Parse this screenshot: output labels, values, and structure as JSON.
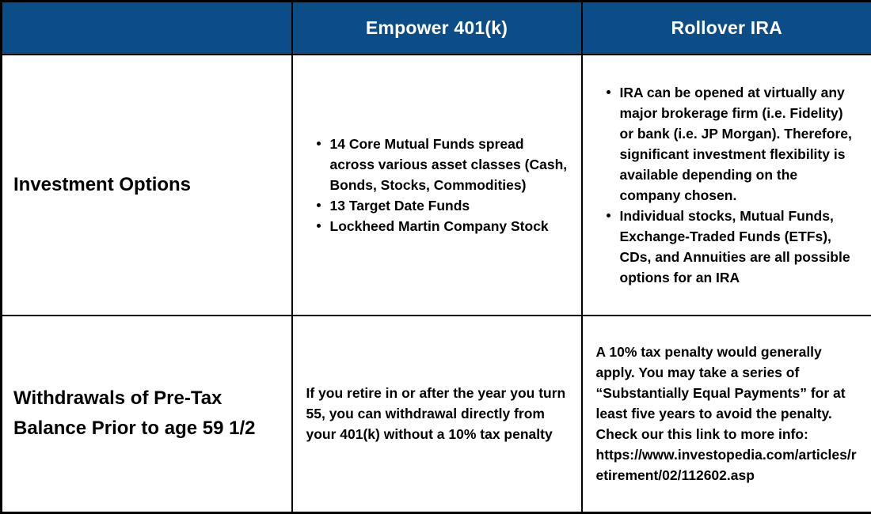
{
  "theme": {
    "header_bg": "#0d4d87",
    "header_text": "#ffffff",
    "body_text": "#000000",
    "border": "#000000",
    "background": "#ffffff"
  },
  "table": {
    "columns": [
      {
        "label": ""
      },
      {
        "label": "Empower 401(k)"
      },
      {
        "label": "Rollover IRA"
      }
    ],
    "rows": [
      {
        "label": "Investment Options",
        "empower": {
          "type": "bullet-list",
          "items": [
            "14 Core Mutual Funds spread across various asset classes (Cash, Bonds, Stocks, Commodities)",
            "13 Target Date Funds",
            "Lockheed Martin Company Stock"
          ]
        },
        "rollover": {
          "type": "bullet-list",
          "items": [
            "IRA can be opened at virtually any major brokerage firm (i.e. Fidelity) or bank (i.e. JP Morgan). Therefore, significant investment flexibility is available depending on the company chosen.",
            "Individual stocks, Mutual Funds, Exchange-Traded Funds (ETFs), CDs, and Annuities are all possible options for an IRA"
          ]
        }
      },
      {
        "label": "Withdrawals of Pre-Tax Balance Prior to age 59 1/2",
        "empower": {
          "type": "text",
          "text": "If you retire in or after the year you turn 55, you can withdrawal directly from your 401(k) without a 10% tax penalty"
        },
        "rollover": {
          "type": "text",
          "text": "A 10% tax penalty would generally apply. You may take a series of “Substantially Equal Payments” for at least five years to avoid the penalty. Check our this link to more info: ",
          "url": "https://www.investopedia.com/articles/retirement/02/112602.asp"
        }
      }
    ]
  }
}
